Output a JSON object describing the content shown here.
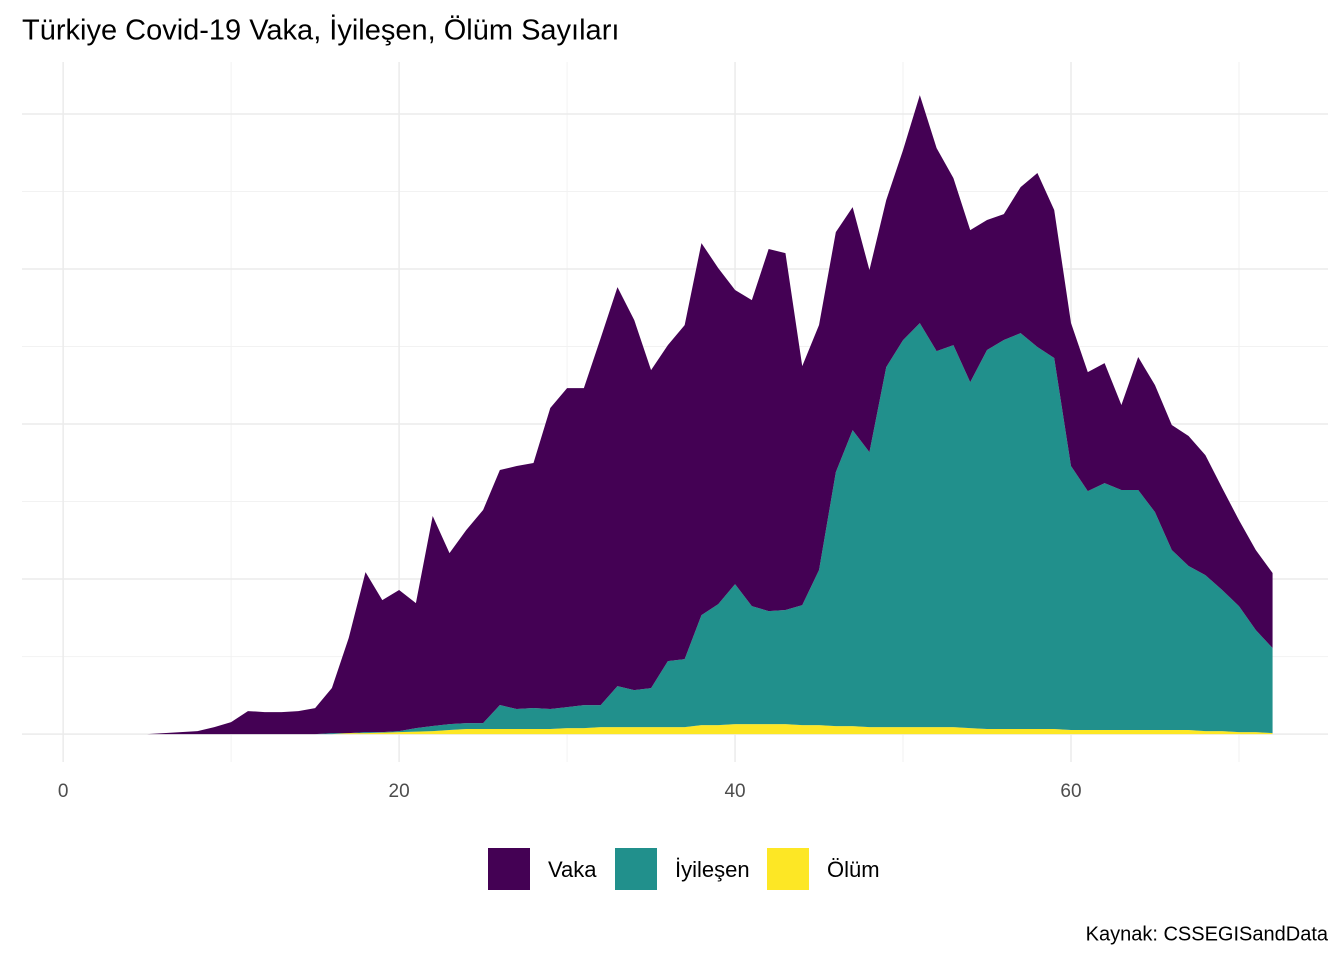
{
  "chart_data": {
    "type": "area",
    "stacked": true,
    "title": "Türkiye Covid-19 Vaka, İyileşen, Ölüm Sayıları",
    "caption": "Kaynak: CSSEGISandData",
    "x": [
      5,
      6,
      7,
      8,
      9,
      10,
      11,
      12,
      13,
      14,
      15,
      16,
      17,
      18,
      19,
      20,
      21,
      22,
      23,
      24,
      25,
      26,
      27,
      28,
      29,
      30,
      31,
      32,
      33,
      34,
      35,
      36,
      37,
      38,
      39,
      40,
      41,
      42,
      43,
      44,
      45,
      46,
      47,
      48,
      49,
      50,
      51,
      52,
      53,
      54,
      55,
      56,
      57,
      58,
      59,
      60,
      61,
      62,
      63,
      64,
      65,
      66,
      67,
      68,
      69,
      70,
      71,
      72
    ],
    "series": [
      {
        "name": "Vaka",
        "color": "#440154",
        "values": [
          0,
          13,
          26,
          39,
          90,
          155,
          297,
          284,
          284,
          297,
          335,
          581,
          1226,
          2064,
          1703,
          1819,
          1613,
          2709,
          2206,
          2490,
          2748,
          3032,
          3135,
          3161,
          3883,
          4115,
          4089,
          4734,
          5147,
          4773,
          4102,
          4076,
          4309,
          4799,
          4334,
          3793,
          3947,
          4670,
          4605,
          3083,
          3161,
          3096,
          2877,
          2348,
          2154,
          2451,
          2941,
          2619,
          2154,
          1961,
          1677,
          1625,
          1883,
          2245,
          1909,
          1845,
          1535,
          1548,
          1097,
          1716,
          1638,
          1613,
          1677,
          1548,
          1316,
          1109,
          1032,
          968
        ]
      },
      {
        "name": "İyileşen",
        "color": "#21908C",
        "values": [
          0,
          0,
          0,
          0,
          0,
          0,
          0,
          0,
          0,
          0,
          0,
          13,
          0,
          13,
          6,
          13,
          45,
          65,
          77,
          77,
          77,
          310,
          258,
          271,
          258,
          271,
          297,
          284,
          529,
          477,
          503,
          851,
          877,
          1419,
          1561,
          1806,
          1522,
          1458,
          1471,
          1548,
          2000,
          3277,
          3818,
          3548,
          4644,
          4992,
          5212,
          4850,
          4928,
          4463,
          4889,
          5018,
          5108,
          4928,
          4786,
          3406,
          3083,
          3186,
          3096,
          3096,
          2812,
          2322,
          2116,
          2012,
          1819,
          1625,
          1316,
          1097
        ]
      },
      {
        "name": "Ölüm",
        "color": "#FDE725",
        "values": [
          0,
          0,
          0,
          0,
          0,
          0,
          0,
          0,
          0,
          0,
          0,
          0,
          13,
          13,
          19,
          26,
          32,
          39,
          52,
          65,
          65,
          65,
          65,
          65,
          65,
          77,
          77,
          90,
          90,
          90,
          90,
          90,
          90,
          116,
          116,
          129,
          129,
          129,
          129,
          116,
          116,
          103,
          103,
          90,
          90,
          90,
          90,
          90,
          90,
          77,
          65,
          65,
          65,
          65,
          65,
          52,
          52,
          52,
          52,
          52,
          52,
          52,
          52,
          39,
          39,
          26,
          26,
          13
        ]
      }
    ],
    "xlim": [
      -2.45,
      75.3
    ],
    "xticks": [
      0,
      20,
      40,
      60
    ],
    "xminorticks": [
      10,
      30,
      50,
      70
    ],
    "ylim": [
      -360,
      8670
    ],
    "yticks": [
      0,
      2000,
      4000,
      6000,
      8000
    ],
    "yminorticks": [
      1000,
      3000,
      5000,
      7000
    ],
    "grid": true,
    "legend": "bottom"
  }
}
